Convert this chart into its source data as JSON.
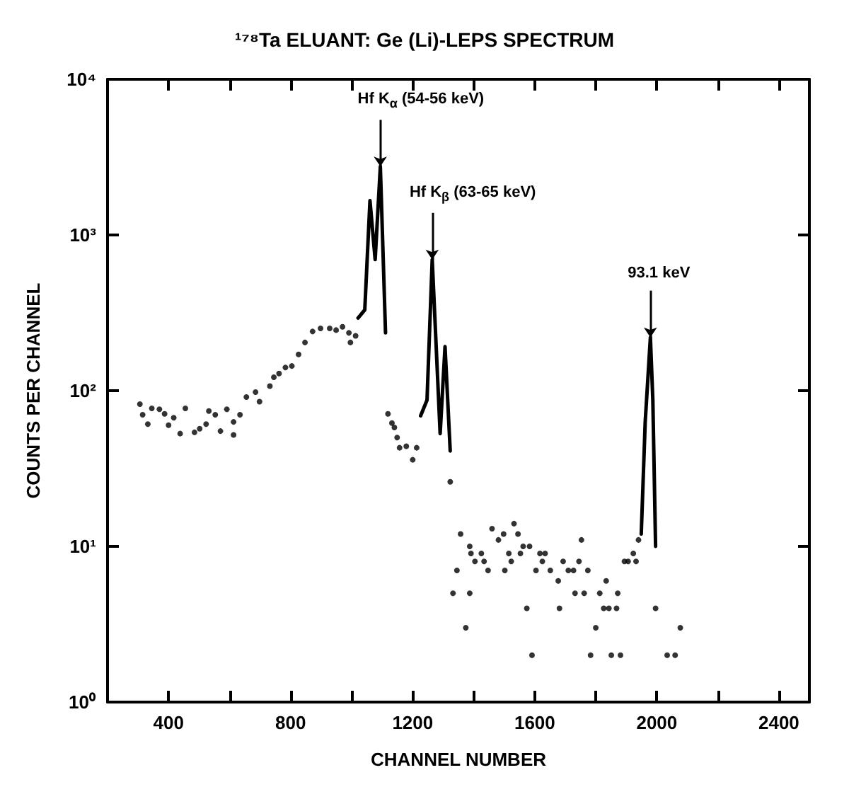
{
  "chart_data": {
    "type": "scatter",
    "title": "¹⁷⁸Ta ELUANT: Ge (Li)-LEPS SPECTRUM",
    "xlabel": "CHANNEL NUMBER",
    "ylabel": "COUNTS PER CHANNEL",
    "log": "y",
    "grid": false,
    "xlim": [
      200,
      2500
    ],
    "xticks": [
      400,
      {
        "value": 600,
        "label": null
      },
      800,
      {
        "value": 1000,
        "label": null
      },
      1200,
      {
        "value": 1400,
        "label": null
      },
      1600,
      {
        "value": 1800,
        "label": null
      },
      2000,
      {
        "value": 2200,
        "label": null
      },
      2400
    ],
    "ylim": [
      1,
      10000
    ],
    "yticks": [
      {
        "value": 1,
        "label": "10⁰"
      },
      {
        "value": 10,
        "label": "10¹"
      },
      {
        "value": 100,
        "label": "10²"
      },
      {
        "value": 1000,
        "label": "10³"
      },
      {
        "value": 10000,
        "label": "10⁴"
      }
    ],
    "annotations": [
      {
        "text": "Hf K$_{α}$ (54-56 keV)",
        "x": 1094,
        "y": 2750
      },
      {
        "text": "Hf K$_{β}$ (63-65 keV)",
        "x": 1264,
        "y": 695
      },
      {
        "text": "93.1 keV",
        "x": 1979,
        "y": 220
      }
    ],
    "series": [
      {
        "marker": "circle",
        "color": "#000000",
        "x": [
          306,
          315,
          332,
          345,
          370,
          387,
          400,
          417,
          438,
          455,
          485,
          502,
          523,
          532,
          553,
          570,
          591,
          613,
          613,
          634,
          655,
          685,
          698,
          732,
          745,
          762,
          783,
          804,
          826,
          847,
          872,
          898,
          928,
          949,
          970,
          991,
          996,
          1013,
          1119,
          1132,
          1140,
          1149,
          1157,
          1179,
          1200,
          1213,
          1323,
          1332,
          1345,
          1357,
          1374,
          1387,
          1387,
          1391,
          1404,
          1425,
          1434,
          1447,
          1460,
          1481,
          1498,
          1502,
          1515,
          1523,
          1532,
          1545,
          1553,
          1562,
          1574,
          1583,
          1591,
          1604,
          1617,
          1625,
          1634,
          1651,
          1677,
          1681,
          1693,
          1710,
          1727,
          1732,
          1745,
          1753,
          1762,
          1774,
          1783,
          1800,
          1813,
          1826,
          1834,
          1843,
          1851,
          1868,
          1872,
          1881,
          1894,
          1906,
          1923,
          1932,
          1940,
          1996,
          2034,
          2060,
          2077
        ],
        "values": [
          82,
          70,
          61,
          77,
          76,
          71,
          60,
          67,
          53,
          77,
          54,
          57,
          61,
          74,
          70,
          55,
          76,
          52,
          63,
          70,
          91,
          98,
          85,
          107,
          122,
          129,
          141,
          144,
          171,
          204,
          240,
          251,
          251,
          245,
          257,
          235,
          204,
          225,
          71,
          62,
          58,
          50,
          43,
          44,
          36,
          43,
          26,
          5,
          7,
          12,
          3,
          10,
          5,
          9,
          8,
          9,
          8,
          7,
          13,
          11,
          12,
          7,
          9,
          8,
          14,
          12,
          9,
          10,
          4,
          10,
          2,
          7,
          9,
          8,
          9,
          7,
          6,
          4,
          8,
          7,
          7,
          5,
          8,
          11,
          5,
          7,
          2,
          3,
          5,
          4,
          6,
          4,
          2,
          4,
          5,
          2,
          8,
          8,
          9,
          8,
          11,
          4,
          2,
          2,
          3
        ]
      },
      {
        "type": "line",
        "marker": "none",
        "color": "#000000",
        "x": [
          1021,
          1043,
          1060,
          1077,
          1094,
          1111
        ],
        "values": [
          293,
          330,
          1660,
          695,
          2750,
          235
        ]
      },
      {
        "type": "line",
        "marker": "none",
        "color": "#000000",
        "x": [
          1226,
          1247,
          1264,
          1290,
          1306,
          1323
        ],
        "values": [
          69,
          87,
          695,
          53,
          192,
          41
        ]
      },
      {
        "type": "line",
        "marker": "none",
        "color": "#000000",
        "x": [
          1949,
          1962,
          1979,
          1987,
          1996
        ],
        "values": [
          12,
          63,
          220,
          87,
          10
        ]
      }
    ]
  }
}
